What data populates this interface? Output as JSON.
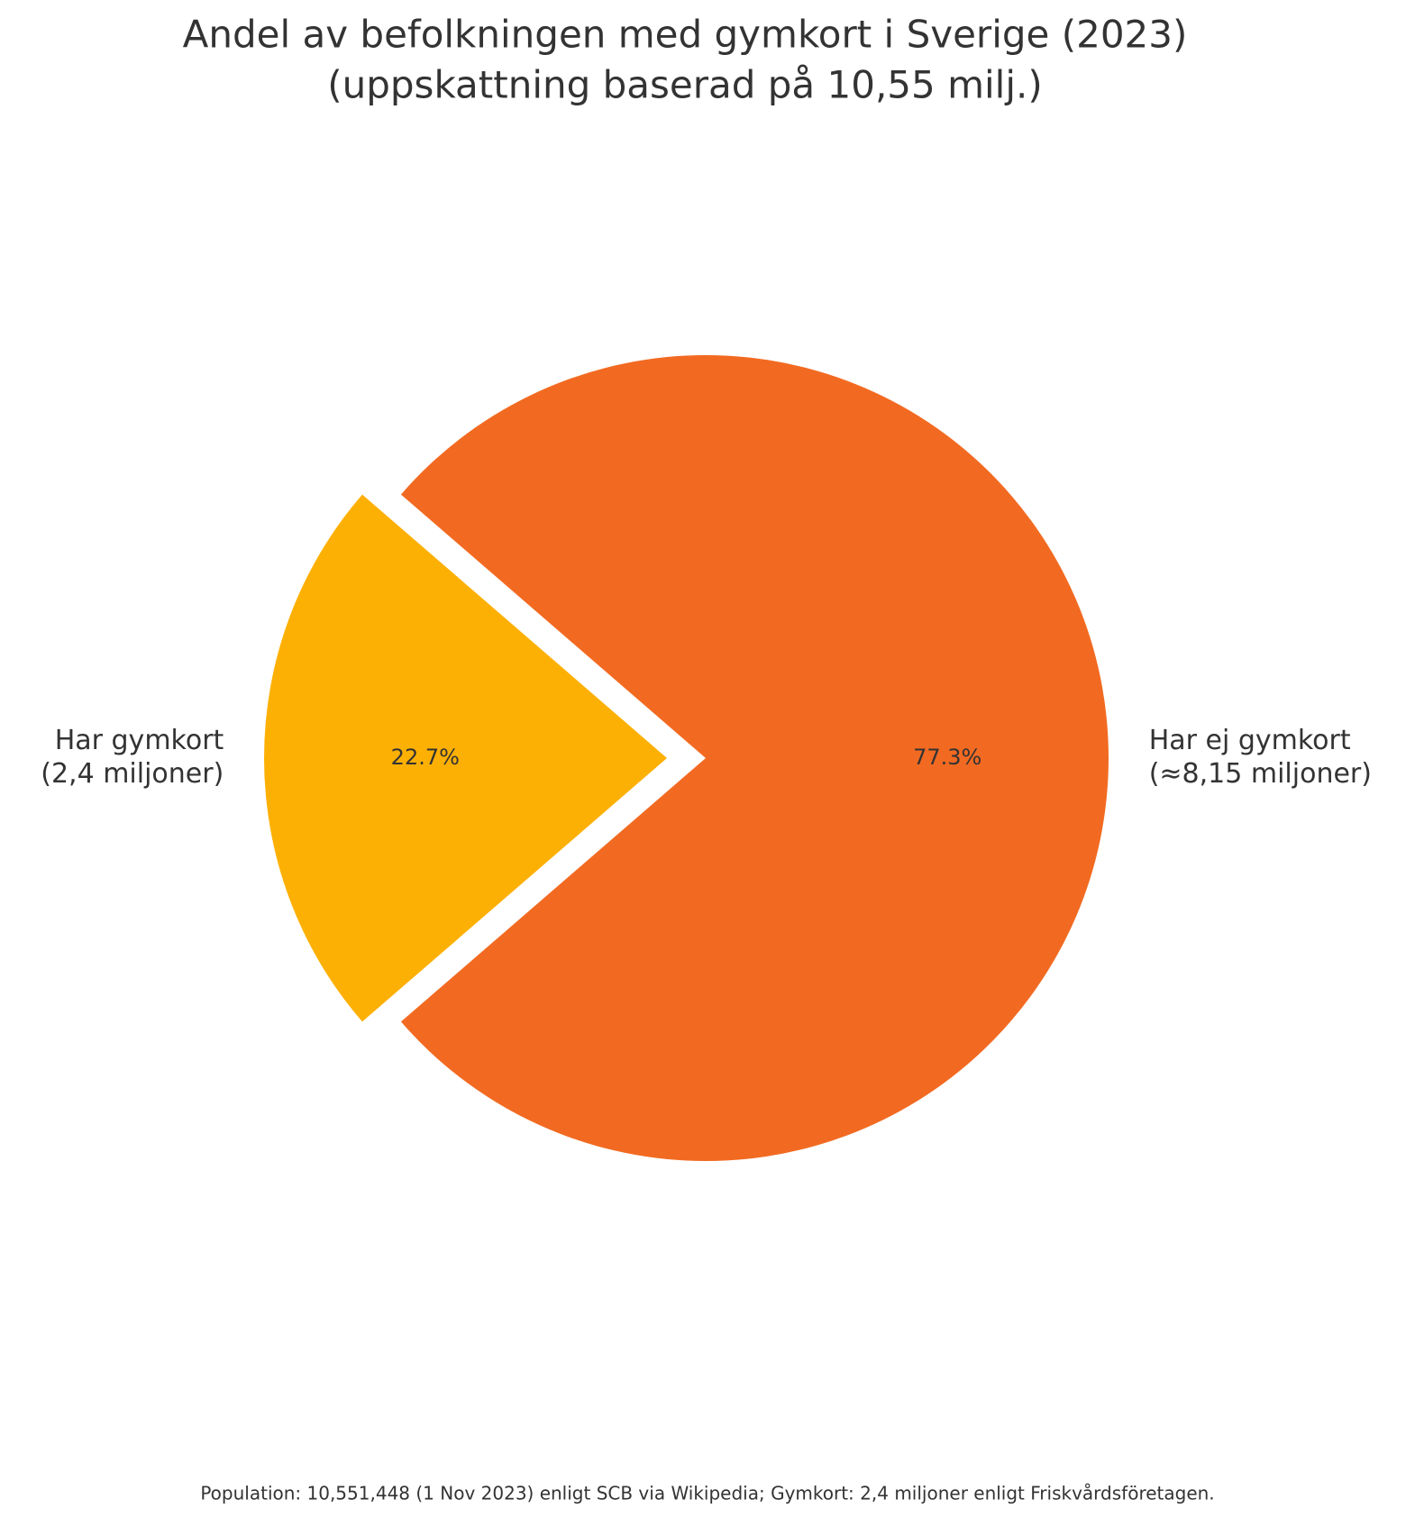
{
  "chart_data": {
    "type": "pie",
    "title": "Andel av befolkningen med gymkort i Sverige (2023)",
    "subtitle": "(uppskattning baserad på 10,55 milj.)",
    "labels": [
      [
        "Har gymkort",
        "(2,4 miljoner)"
      ],
      [
        "Har ej gymkort",
        "(≈8,15 miljoner)"
      ]
    ],
    "values": [
      22.7,
      77.3
    ],
    "value_labels": [
      "22.7%",
      "77.3%"
    ],
    "colors": [
      "#fdb004",
      "#f26a21"
    ],
    "explode": [
      true,
      false
    ],
    "footnote": "Population: 10,551,448 (1 Nov 2023) enligt SCB via Wikipedia; Gymkort: 2,4 miljoner enligt Friskvårdsföretagen."
  }
}
